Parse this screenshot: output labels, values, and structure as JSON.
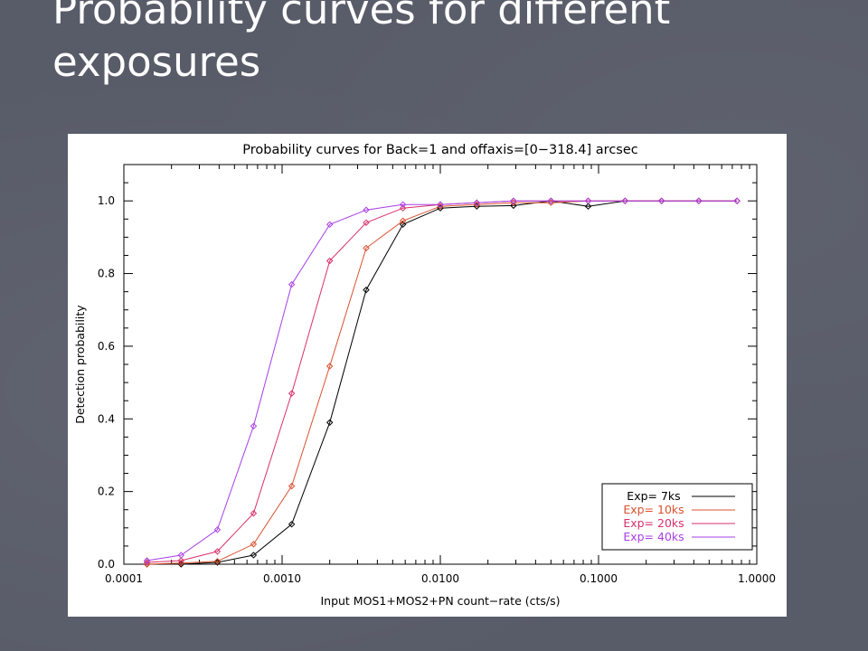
{
  "slide": {
    "title": "Probability curves for different exposures"
  },
  "chart_data": {
    "type": "line",
    "title": "Probability curves for Back=1 and offaxis=[0−318.4] arcsec",
    "xlabel": "Input MOS1+MOS2+PN count−rate (cts/s)",
    "ylabel": "Detection probability",
    "xscale": "log",
    "xlim": [
      0.0001,
      1.0
    ],
    "ylim": [
      0.0,
      1.1
    ],
    "xticks": [
      "0.0001",
      "0.0010",
      "0.0100",
      "0.1000",
      "1.0000"
    ],
    "yticks": [
      "0.0",
      "0.2",
      "0.4",
      "0.6",
      "0.8",
      "1.0"
    ],
    "legend_position": "bottom-right",
    "marker": "diamond",
    "series": [
      {
        "name": "Exp= 7ks",
        "color": "#000000",
        "x": [
          0.00014,
          0.00023,
          0.00039,
          0.00066,
          0.00115,
          0.002,
          0.0034,
          0.0058,
          0.01,
          0.017,
          0.029,
          0.05,
          0.086,
          0.147,
          0.25,
          0.43,
          0.75
        ],
        "y": [
          0.0,
          0.0,
          0.005,
          0.025,
          0.11,
          0.39,
          0.755,
          0.935,
          0.98,
          0.985,
          0.987,
          1.0,
          0.985,
          1.0,
          1.0,
          1.0,
          1.0
        ]
      },
      {
        "name": "Exp= 10ks",
        "color": "#d9502f",
        "x": [
          0.00014,
          0.00023,
          0.00039,
          0.00066,
          0.00115,
          0.002,
          0.0034,
          0.0058,
          0.01,
          0.017,
          0.029,
          0.05,
          0.086,
          0.147,
          0.25,
          0.43,
          0.75
        ],
        "y": [
          0.0,
          0.003,
          0.008,
          0.055,
          0.215,
          0.545,
          0.87,
          0.945,
          0.985,
          0.99,
          0.995,
          0.995,
          1.0,
          1.0,
          1.0,
          1.0,
          1.0
        ]
      },
      {
        "name": "Exp= 20ks",
        "color": "#d8306a",
        "x": [
          0.00014,
          0.00023,
          0.00039,
          0.00066,
          0.00115,
          0.002,
          0.0034,
          0.0058,
          0.01,
          0.017,
          0.029,
          0.05,
          0.086,
          0.147,
          0.25,
          0.43,
          0.75
        ],
        "y": [
          0.005,
          0.01,
          0.035,
          0.14,
          0.47,
          0.835,
          0.94,
          0.98,
          0.99,
          0.995,
          1.0,
          1.0,
          1.0,
          1.0,
          1.0,
          1.0,
          1.0
        ]
      },
      {
        "name": "Exp= 40ks",
        "color": "#a83fe6",
        "x": [
          0.00014,
          0.00023,
          0.00039,
          0.00066,
          0.00115,
          0.002,
          0.0034,
          0.0058,
          0.01,
          0.017,
          0.029,
          0.05,
          0.086,
          0.147,
          0.25,
          0.43,
          0.75
        ],
        "y": [
          0.01,
          0.025,
          0.095,
          0.38,
          0.77,
          0.935,
          0.975,
          0.99,
          0.99,
          0.995,
          1.0,
          1.0,
          1.0,
          1.0,
          1.0,
          1.0,
          1.0
        ]
      }
    ]
  }
}
